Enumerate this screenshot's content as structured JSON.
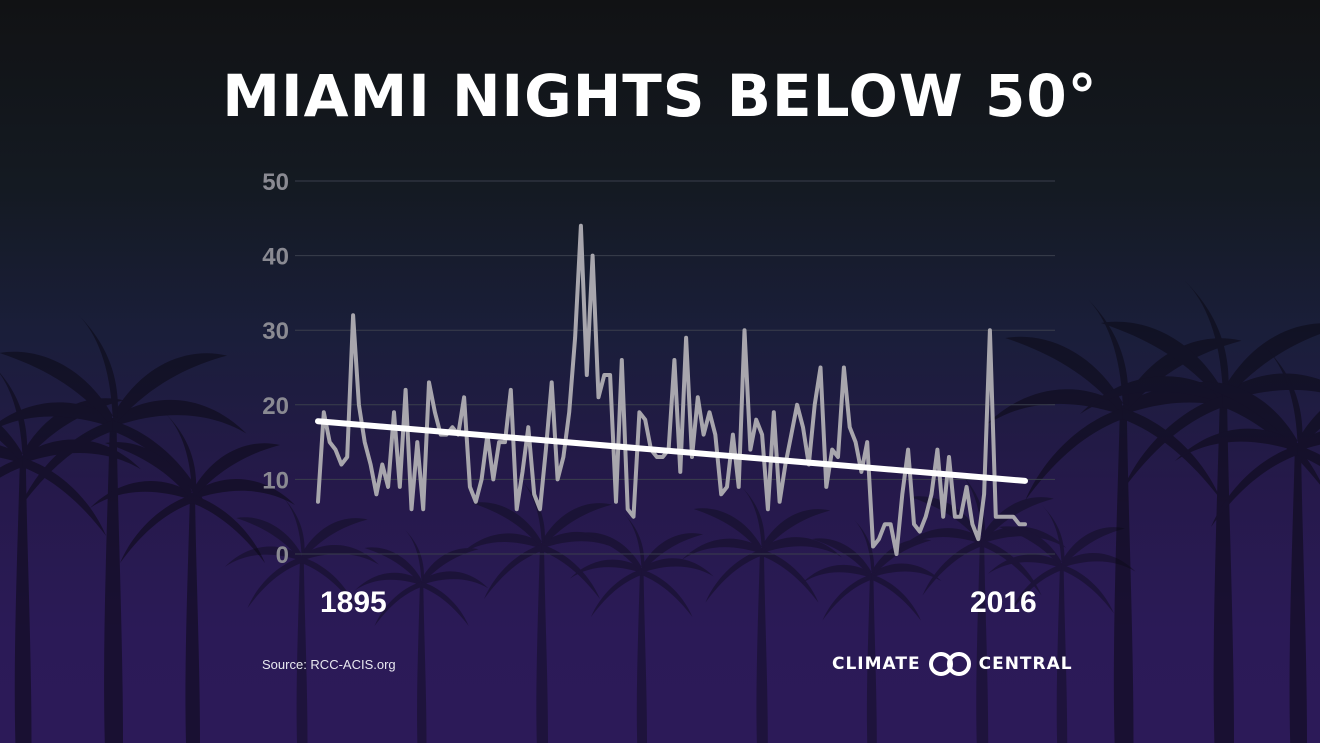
{
  "title": "MIAMI NIGHTS BELOW 50°",
  "source": "Source: RCC-ACIS.org",
  "logo": {
    "left": "CLIMATE",
    "right": "CENTRAL",
    "icon": "interlocking-rings-icon"
  },
  "colors": {
    "series": "#a8a6ad",
    "trend": "#ffffff",
    "grid": "#3a3f4c",
    "tick": "#8a8a92"
  },
  "chart_data": {
    "type": "line",
    "title": "MIAMI NIGHTS BELOW 50°",
    "xlabel": "",
    "ylabel": "",
    "x_tick_labels": [
      "1895",
      "2016"
    ],
    "y_ticks": [
      0,
      10,
      20,
      30,
      40,
      50
    ],
    "ylim": [
      0,
      50
    ],
    "xlim": [
      1895,
      2016
    ],
    "grid": true,
    "x": [
      1895,
      1896,
      1897,
      1898,
      1899,
      1900,
      1901,
      1902,
      1903,
      1904,
      1905,
      1906,
      1907,
      1908,
      1909,
      1910,
      1911,
      1912,
      1913,
      1914,
      1915,
      1916,
      1917,
      1918,
      1919,
      1920,
      1921,
      1922,
      1923,
      1924,
      1925,
      1926,
      1927,
      1928,
      1929,
      1930,
      1931,
      1932,
      1933,
      1934,
      1935,
      1936,
      1937,
      1938,
      1939,
      1940,
      1941,
      1942,
      1943,
      1944,
      1945,
      1946,
      1947,
      1948,
      1949,
      1950,
      1951,
      1952,
      1953,
      1954,
      1955,
      1956,
      1957,
      1958,
      1959,
      1960,
      1961,
      1962,
      1963,
      1964,
      1965,
      1966,
      1967,
      1968,
      1969,
      1970,
      1971,
      1972,
      1973,
      1974,
      1975,
      1976,
      1977,
      1978,
      1979,
      1980,
      1981,
      1982,
      1983,
      1984,
      1985,
      1986,
      1987,
      1988,
      1989,
      1990,
      1991,
      1992,
      1993,
      1994,
      1995,
      1996,
      1997,
      1998,
      1999,
      2000,
      2001,
      2002,
      2003,
      2004,
      2005,
      2006,
      2007,
      2008,
      2009,
      2010,
      2011,
      2012,
      2013,
      2014,
      2015,
      2016
    ],
    "series": [
      {
        "values": [
          7,
          19,
          15,
          14,
          12,
          13,
          32,
          20,
          15,
          12,
          8,
          12,
          9,
          19,
          9,
          22,
          6,
          15,
          6,
          23,
          19,
          16,
          16,
          17,
          16,
          21,
          9,
          7,
          10,
          16,
          10,
          15,
          15,
          22,
          6,
          11,
          17,
          8,
          6,
          14,
          23,
          10,
          13,
          19,
          29,
          44,
          24,
          40,
          21,
          24,
          24,
          7,
          26,
          6,
          5,
          19,
          18,
          14,
          13,
          13,
          14,
          26,
          11,
          29,
          13,
          21,
          16,
          19,
          16,
          8,
          9,
          16,
          9,
          30,
          14,
          18,
          16,
          6,
          19,
          7,
          12,
          16,
          20,
          17,
          12,
          20,
          25,
          9,
          14,
          13,
          25,
          17,
          15,
          11,
          15,
          1,
          2,
          4,
          4,
          0,
          8,
          14,
          4,
          3,
          5,
          8,
          14,
          5,
          13,
          5,
          5,
          9,
          4,
          2,
          8,
          30,
          5,
          5,
          5,
          5,
          4,
          4
        ]
      },
      {
        "name": "trend",
        "type": "linear_trend",
        "start": 17.8,
        "end": 9.8
      }
    ]
  }
}
